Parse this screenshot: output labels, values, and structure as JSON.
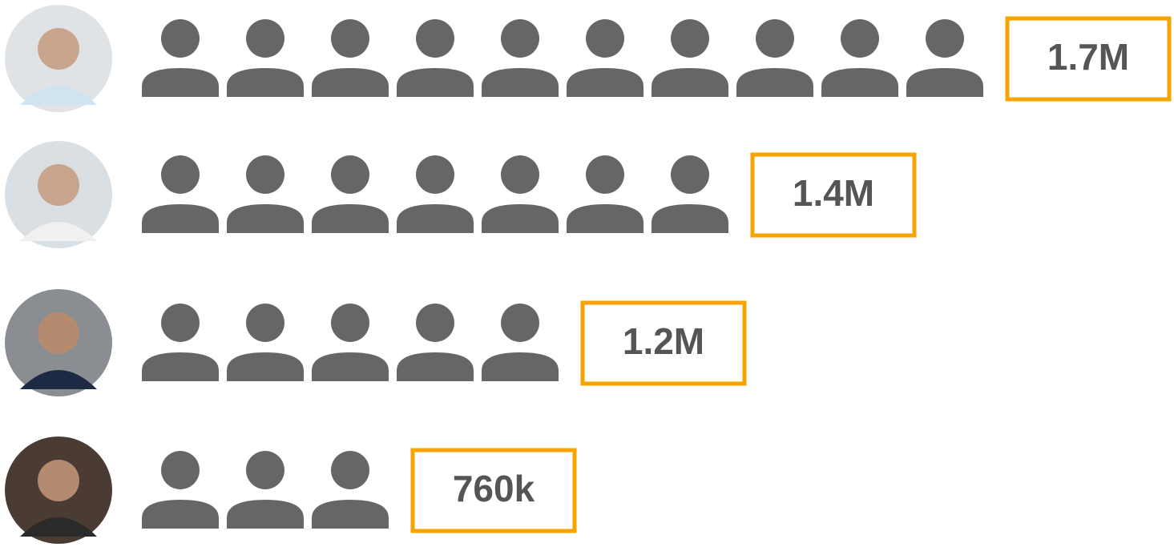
{
  "chart_data": {
    "type": "pictogram",
    "categories": [
      null,
      null,
      null,
      null
    ],
    "values": [
      1700000,
      1400000,
      1200000,
      760000
    ],
    "value_labels": [
      "1.7M",
      "1.4M",
      "1.2M",
      "760k"
    ],
    "icons": [
      10,
      7,
      5,
      3
    ],
    "color": "#666666",
    "box_color": "#f7a400"
  }
}
